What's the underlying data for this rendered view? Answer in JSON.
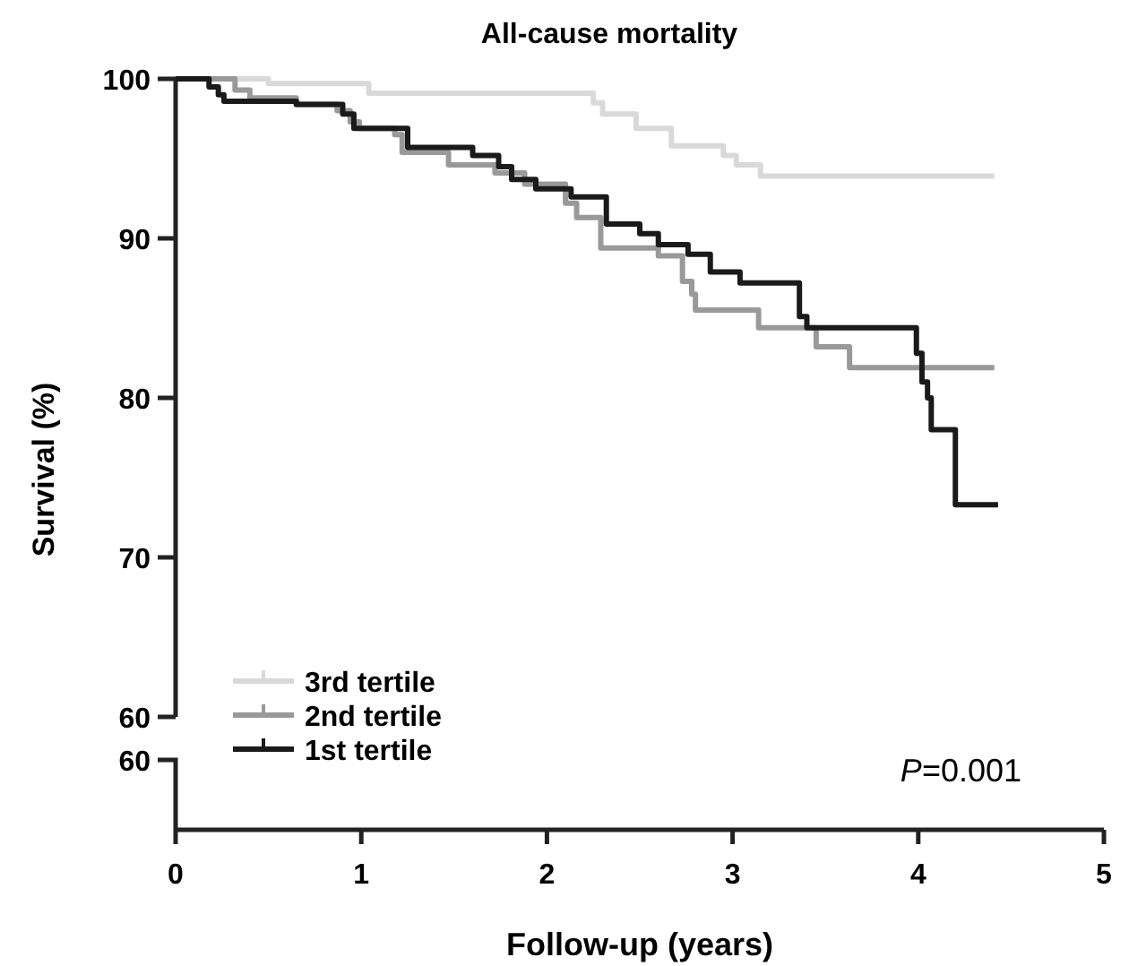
{
  "chart_data": {
    "type": "step",
    "title": "All-cause mortality",
    "ylabel": "Survival (%)",
    "xlabel": "Follow-up (years)",
    "xlim": [
      0,
      5
    ],
    "xticks": [
      0,
      1,
      2,
      3,
      4,
      5
    ],
    "ylim": [
      60,
      100
    ],
    "yticks": [
      60,
      70,
      80,
      90,
      100
    ],
    "legend": "bottom left",
    "line_style": "solid",
    "series": [
      {
        "name": "3rd tertile",
        "color": "#d9d9d9",
        "x": [
          0,
          0.5,
          1.04,
          2.25,
          2.3,
          2.48,
          2.67,
          2.95,
          3.02,
          3.15,
          4.41
        ],
        "values": [
          100,
          99.7,
          99.1,
          98.5,
          97.8,
          96.9,
          95.8,
          95.2,
          94.6,
          93.9,
          93.9
        ]
      },
      {
        "name": "2nd tertile",
        "color": "#999999",
        "x": [
          0,
          0.32,
          0.4,
          0.65,
          0.87,
          0.94,
          0.99,
          1.18,
          1.22,
          1.47,
          1.72,
          1.88,
          2.1,
          2.16,
          2.29,
          2.6,
          2.73,
          2.78,
          2.8,
          3.14,
          3.45,
          3.63,
          4.41
        ],
        "values": [
          100,
          99.3,
          98.8,
          98.4,
          98.0,
          97.3,
          96.9,
          96.5,
          95.4,
          94.6,
          94.1,
          93.4,
          92.2,
          91.3,
          89.4,
          88.9,
          87.3,
          86.5,
          85.5,
          84.4,
          83.2,
          81.9,
          81.9
        ]
      },
      {
        "name": "1st tertile",
        "color": "#1a1a1a",
        "x": [
          0,
          0.18,
          0.23,
          0.26,
          0.65,
          0.9,
          0.96,
          1.25,
          1.6,
          1.74,
          1.81,
          1.94,
          2.13,
          2.32,
          2.5,
          2.6,
          2.76,
          2.88,
          3.04,
          3.36,
          3.4,
          3.99,
          4.02,
          4.05,
          4.07,
          4.2,
          4.43
        ],
        "values": [
          100,
          99.5,
          99.0,
          98.6,
          98.4,
          97.8,
          96.9,
          95.7,
          95.2,
          94.5,
          93.7,
          93.1,
          92.6,
          90.9,
          90.3,
          89.6,
          89.0,
          87.9,
          87.2,
          85.1,
          84.4,
          82.8,
          81.0,
          80.0,
          78.0,
          73.3,
          73.3
        ]
      }
    ],
    "annotations": [
      "60",
      "P=0.001"
    ]
  }
}
